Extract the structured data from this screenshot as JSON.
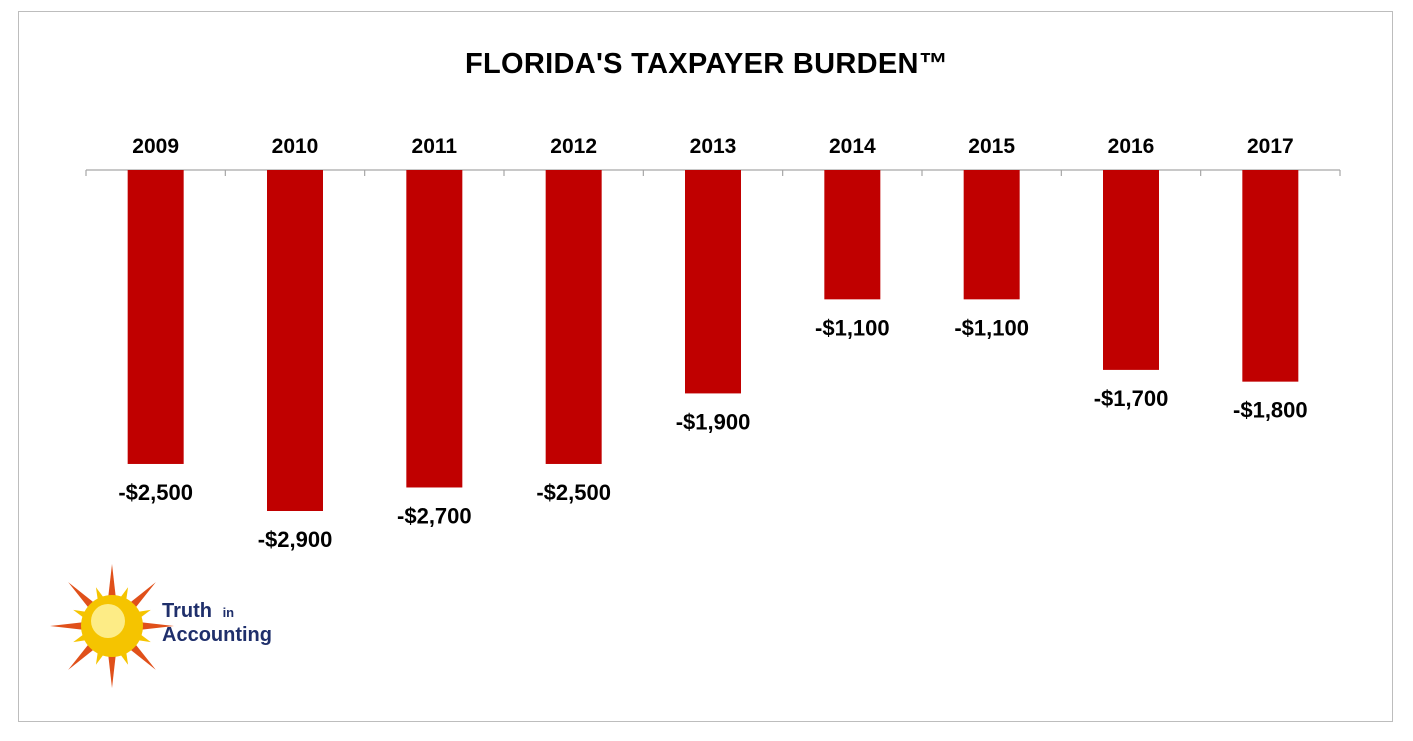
{
  "chart_data": {
    "type": "bar",
    "title": "FLORIDA'S TAXPAYER BURDEN™",
    "categories": [
      "2009",
      "2010",
      "2011",
      "2012",
      "2013",
      "2014",
      "2015",
      "2016",
      "2017"
    ],
    "values": [
      -2500,
      -2900,
      -2700,
      -2500,
      -1900,
      -1100,
      -1100,
      -1700,
      -1800
    ],
    "value_labels": [
      "-$2,500",
      "-$2,900",
      "-$2,700",
      "-$2,500",
      "-$1,900",
      "-$1,100",
      "-$1,100",
      "-$1,700",
      "-$1,800"
    ],
    "xlabel": "",
    "ylabel": "",
    "ylim": [
      -3000,
      0
    ],
    "grid": false,
    "legend": "none",
    "bar_color": "#c00000"
  },
  "logo": {
    "line1": "Truth",
    "line1_small": "in",
    "line2": "Accounting",
    "text_color": "#1f2f6b",
    "sun_color": "#f5c400",
    "ray_color": "#e0501a"
  }
}
